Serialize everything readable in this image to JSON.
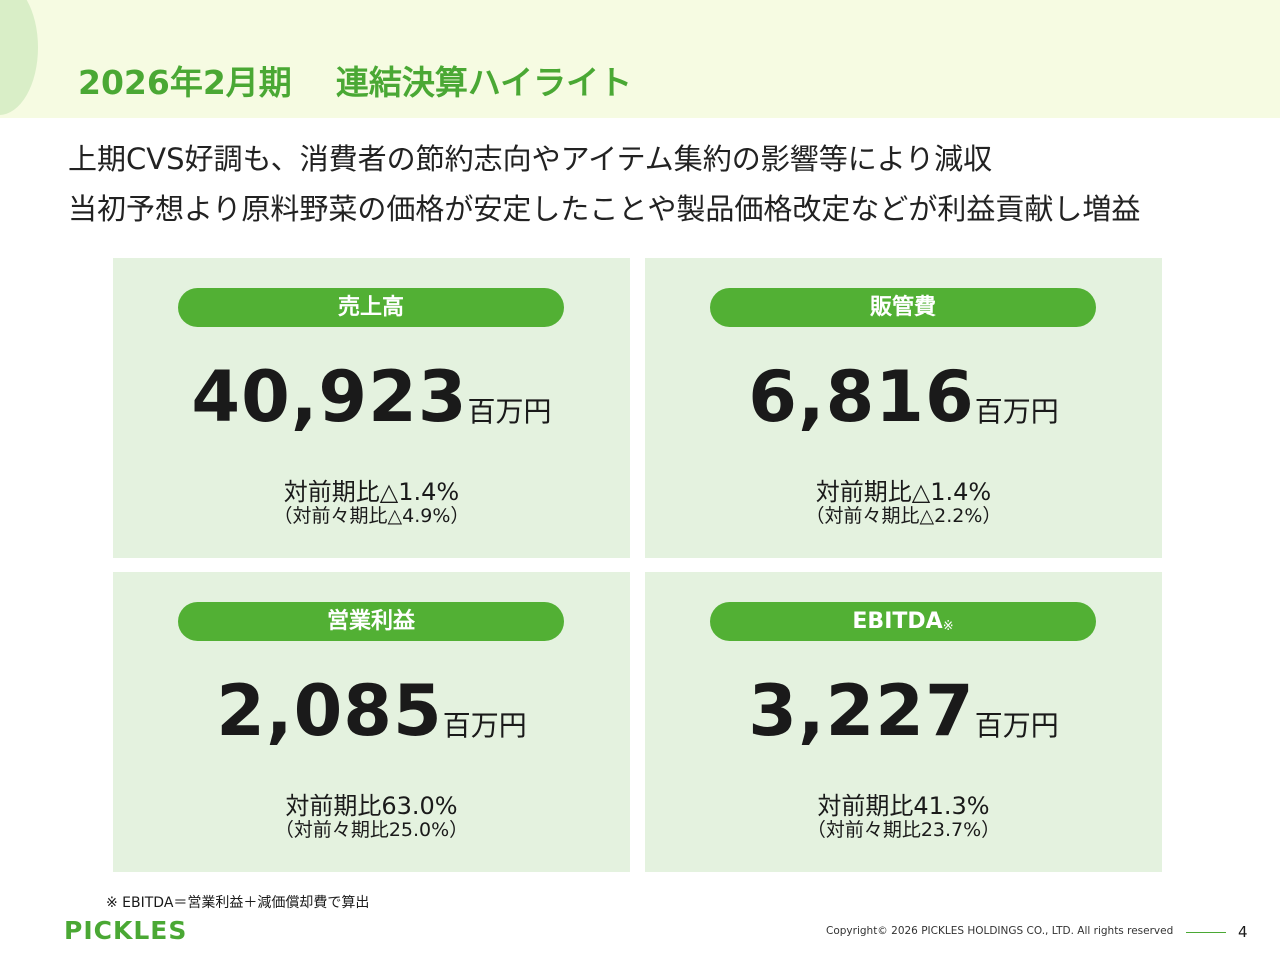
{
  "header": {
    "period": "2026年2月期",
    "title": "連結決算ハイライト"
  },
  "summary": [
    "上期CVS好調も、消費者の節約志向やアイテム集約の影響等により減収",
    "当初予想より原料野菜の価格が安定したことや製品価格改定などが利益貢献し増益"
  ],
  "cards": [
    {
      "label": "売上高",
      "value": "40,923",
      "unit": "百万円",
      "yoy": "対前期比△1.4%",
      "yoy2": "（対前々期比△4.9%）"
    },
    {
      "label": "販管費",
      "value": "6,816",
      "unit": "百万円",
      "yoy": "対前期比△1.4%",
      "yoy2": "（対前々期比△2.2%）"
    },
    {
      "label": "営業利益",
      "value": "2,085",
      "unit": "百万円",
      "yoy": "対前期比63.0%",
      "yoy2": "（対前々期比25.0%）"
    },
    {
      "label": "EBITDA",
      "mark": "※",
      "value": "3,227",
      "unit": "百万円",
      "yoy": "対前期比41.3%",
      "yoy2": "（対前々期比23.7%）"
    }
  ],
  "footnote": "※  EBITDA＝営業利益＋減価償却費で算出",
  "footer": {
    "logo": "PICKLES",
    "copyright": "Copyright© 2026 PICKLES HOLDINGS CO., LTD. All rights reserved",
    "page": "4"
  }
}
